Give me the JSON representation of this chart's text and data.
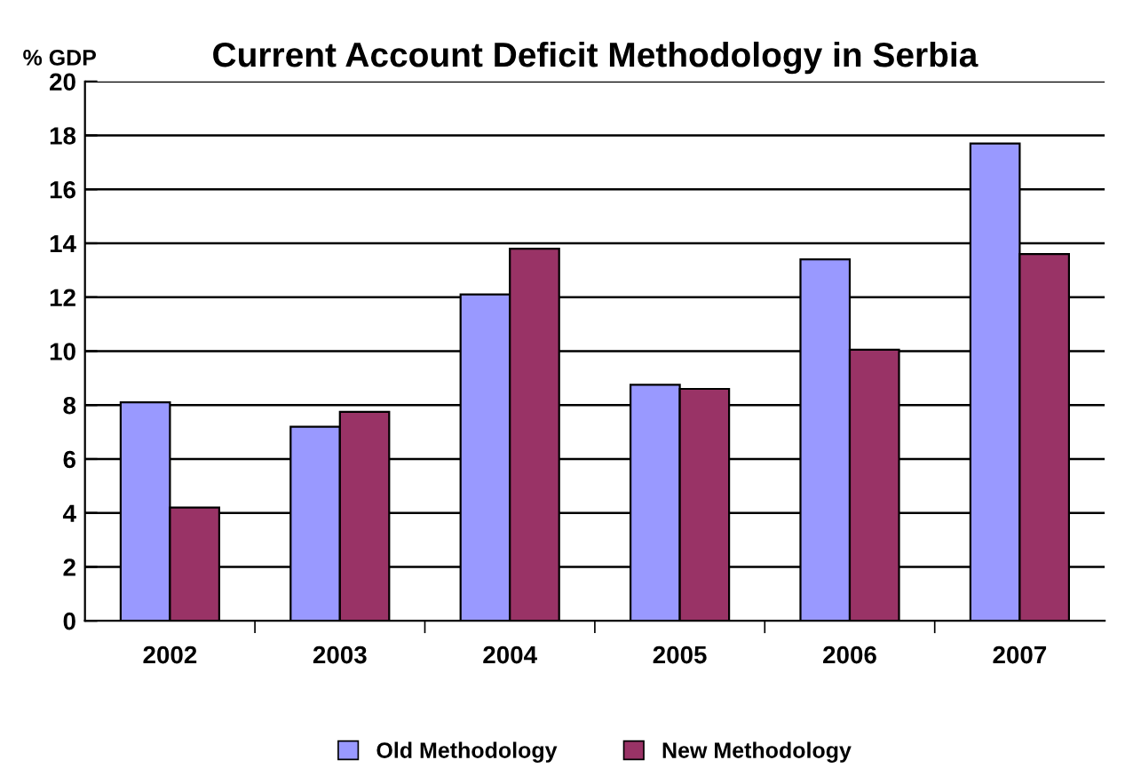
{
  "chart_data": {
    "type": "bar",
    "title": "Current Account Deficit Methodology in Serbia",
    "ylabel": "% GDP",
    "categories": [
      "2002",
      "2003",
      "2004",
      "2005",
      "2006",
      "2007"
    ],
    "series": [
      {
        "name": "Old Methodology",
        "color": "#9999ff",
        "values": [
          8.1,
          7.2,
          12.1,
          8.75,
          13.4,
          17.7
        ]
      },
      {
        "name": "New Methodology",
        "color": "#993366",
        "values": [
          4.2,
          7.75,
          13.8,
          8.6,
          10.05,
          13.6
        ]
      }
    ],
    "ylim": [
      0,
      20
    ],
    "yticks": [
      0,
      2,
      4,
      6,
      8,
      10,
      12,
      14,
      16,
      18,
      20
    ],
    "grid": "y",
    "legend": "bottom"
  }
}
